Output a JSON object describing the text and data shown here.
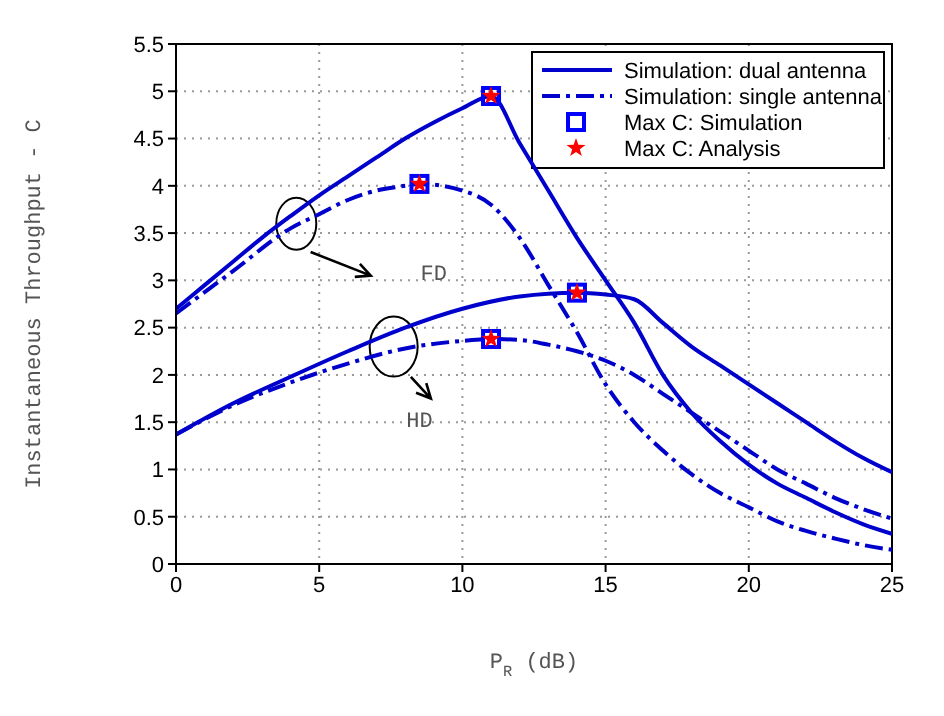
{
  "chart_data": {
    "type": "line",
    "xlabel": "P$_{R}$ (dB)",
    "ylabel": "Instantaneous Throughput - C",
    "xlim": [
      0,
      25
    ],
    "xticks": [
      0,
      5,
      10,
      15,
      20,
      25
    ],
    "ylim": [
      0,
      5.5
    ],
    "yticks": [
      0,
      0.5,
      1,
      1.5,
      2,
      2.5,
      3,
      3.5,
      4,
      4.5,
      5,
      5.5
    ],
    "grid": true,
    "legend": "top right",
    "marker": "none",
    "series": [
      {
        "name": "Simulation: dual antenna",
        "color": "#0000cc",
        "line_style": "solid",
        "x": [
          0,
          1,
          2,
          3,
          4,
          5,
          6,
          7,
          8,
          9,
          10,
          11,
          12,
          13,
          14,
          15,
          16,
          17,
          18,
          19,
          20,
          21,
          22,
          23,
          24,
          25
        ],
        "values": [
          2.7,
          2.95,
          3.2,
          3.45,
          3.68,
          3.9,
          4.1,
          4.3,
          4.5,
          4.67,
          4.82,
          4.95,
          4.45,
          3.95,
          3.45,
          3.0,
          2.55,
          2.0,
          1.6,
          1.3,
          1.05,
          0.85,
          0.7,
          0.55,
          0.42,
          0.32
        ]
      },
      {
        "name": "Simulation: single antenna",
        "color": "#0000cc",
        "line_style": "dashed",
        "x": [
          0,
          2,
          4,
          5,
          6,
          7,
          8,
          8.5,
          10,
          11,
          12,
          13,
          14,
          15,
          16,
          17,
          18,
          19,
          20,
          21,
          22,
          23,
          24,
          25
        ],
        "values": [
          2.65,
          3.1,
          3.55,
          3.7,
          3.85,
          3.95,
          4.0,
          4.02,
          3.95,
          3.8,
          3.45,
          2.95,
          2.45,
          1.9,
          1.5,
          1.2,
          0.95,
          0.75,
          0.6,
          0.45,
          0.35,
          0.27,
          0.2,
          0.15
        ]
      },
      {
        "color": "#0000cc",
        "line_style": "solid",
        "x": [
          0,
          2,
          4,
          6,
          8,
          10,
          12,
          14,
          15,
          16,
          17,
          18,
          19,
          20,
          21,
          22,
          23,
          24,
          25
        ],
        "values": [
          1.37,
          1.7,
          1.98,
          2.25,
          2.5,
          2.7,
          2.83,
          2.87,
          2.85,
          2.8,
          2.55,
          2.3,
          2.1,
          1.9,
          1.7,
          1.5,
          1.3,
          1.12,
          0.97
        ]
      },
      {
        "color": "#0000cc",
        "line_style": "dashed",
        "x": [
          0,
          2,
          4,
          6,
          8,
          10,
          11,
          12,
          13,
          14,
          15,
          16,
          17,
          18,
          19,
          20,
          21,
          22,
          23,
          24,
          25
        ],
        "values": [
          1.37,
          1.68,
          1.92,
          2.12,
          2.28,
          2.36,
          2.38,
          2.37,
          2.32,
          2.25,
          2.15,
          2.0,
          1.8,
          1.6,
          1.4,
          1.2,
          1.0,
          0.85,
          0.7,
          0.58,
          0.48
        ]
      },
      {
        "name": "Max C: Simulation",
        "type": "scatter",
        "marker": "square",
        "color": "#0000ff",
        "x": [
          11,
          8.5,
          14,
          11
        ],
        "values": [
          4.95,
          4.02,
          2.87,
          2.38
        ]
      },
      {
        "name": "Max C: Analysis",
        "type": "scatter",
        "marker": "star",
        "color": "#ff0000",
        "x": [
          11,
          8.5,
          14,
          11
        ],
        "values": [
          4.95,
          4.02,
          2.87,
          2.38
        ]
      }
    ],
    "annotations": [
      "FD",
      "HD"
    ]
  }
}
